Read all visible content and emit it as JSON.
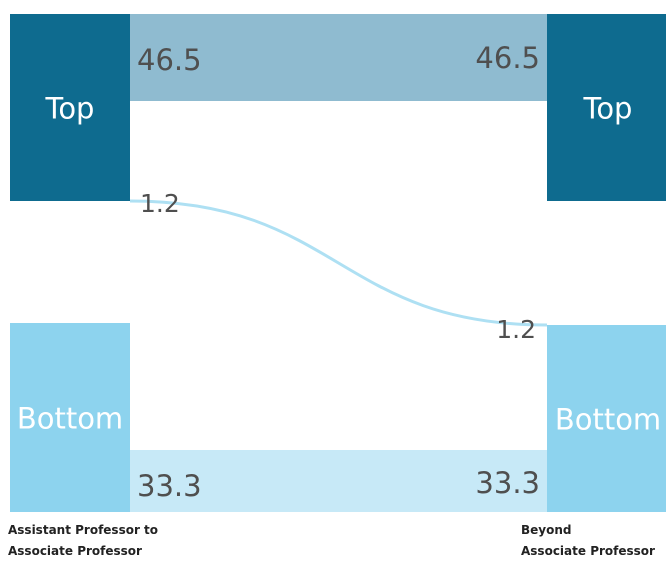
{
  "chart_data": {
    "type": "sankey",
    "stages": [
      "Assistant Professor to\nAssociate Professor",
      "Beyond\nAssociate Professor"
    ],
    "nodes": {
      "left": [
        {
          "id": "top",
          "label": "Top",
          "color": "#0e6b8f"
        },
        {
          "id": "bottom",
          "label": "Bottom",
          "color": "#8dd3ee"
        }
      ],
      "right": [
        {
          "id": "top",
          "label": "Top",
          "color": "#0e6b8f"
        },
        {
          "id": "bottom",
          "label": "Bottom",
          "color": "#8dd3ee"
        }
      ]
    },
    "flows": [
      {
        "from": "top",
        "to": "top",
        "value": 46.5,
        "source_label": "46.5",
        "target_label": "46.5",
        "color": "#8fbbd0"
      },
      {
        "from": "top",
        "to": "bottom",
        "value": 1.2,
        "source_label": "1.2",
        "target_label": "1.2",
        "color": "#aee0f3"
      },
      {
        "from": "bottom",
        "to": "bottom",
        "value": 33.3,
        "source_label": "33.3",
        "target_label": "33.3",
        "color": "#c7e9f7"
      }
    ]
  }
}
